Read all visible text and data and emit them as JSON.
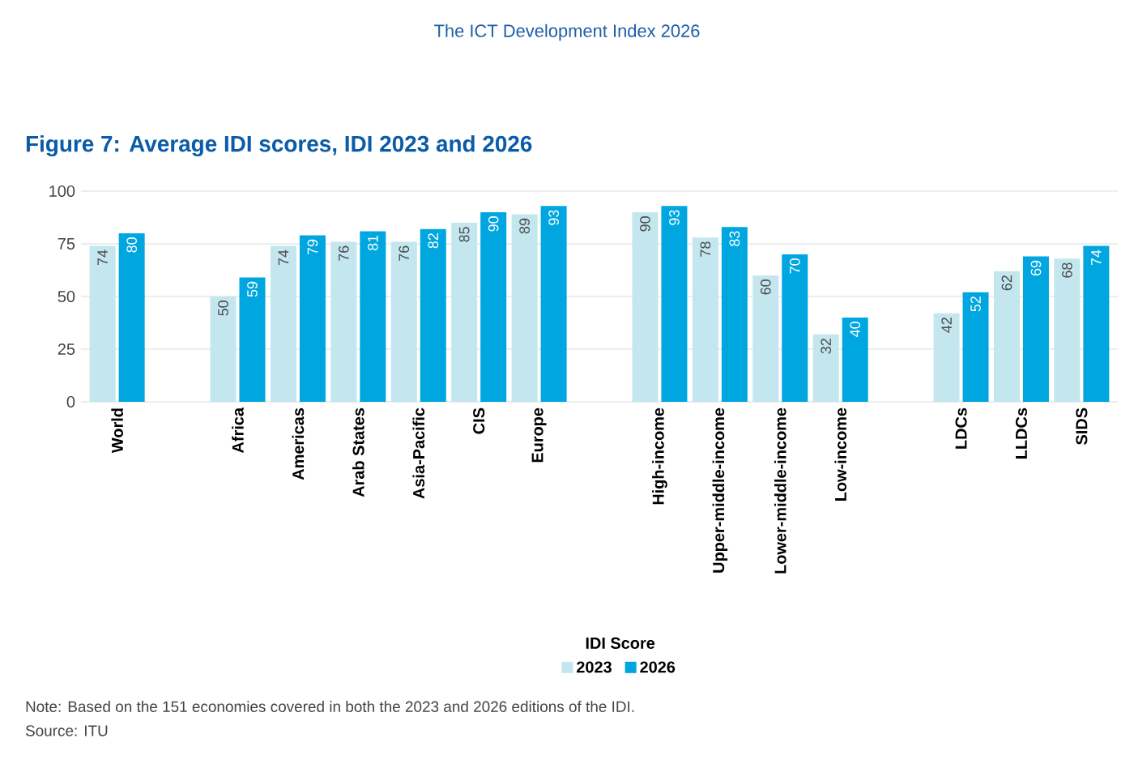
{
  "chart_data": {
    "type": "bar",
    "title": "Figure 7: Average IDI scores, IDI 2023 and 2026",
    "categories": [
      "World",
      null,
      "Africa",
      "Americas",
      "Arab States",
      "Asia-Pacific",
      "CIS",
      "Europe",
      null,
      "High-income",
      "Upper-middle-income",
      "Lower-middle-income",
      "Low-income",
      null,
      "LDCs",
      "LLDCs",
      "SIDS"
    ],
    "series": [
      {
        "name": "2023",
        "color": "#c3e6ef",
        "values": [
          74,
          null,
          50,
          74,
          76,
          76,
          85,
          89,
          null,
          90,
          78,
          60,
          32,
          null,
          42,
          62,
          68
        ]
      },
      {
        "name": "2026",
        "color": "#00a6df",
        "values": [
          80,
          null,
          59,
          79,
          81,
          82,
          90,
          93,
          null,
          93,
          83,
          70,
          40,
          null,
          52,
          69,
          74
        ]
      }
    ],
    "legend_title": "IDI Score",
    "legend": "bottom",
    "ylim": [
      0,
      100
    ],
    "yticks": [
      0,
      25,
      50,
      75,
      100
    ],
    "grid": "y",
    "data_labels": true,
    "annotations": [
      "The ICT Development Index 2026",
      "Note: Based on the 151 economies covered in both the 2023 and 2026 editions of the IDI.",
      "Source: ITU"
    ]
  }
}
